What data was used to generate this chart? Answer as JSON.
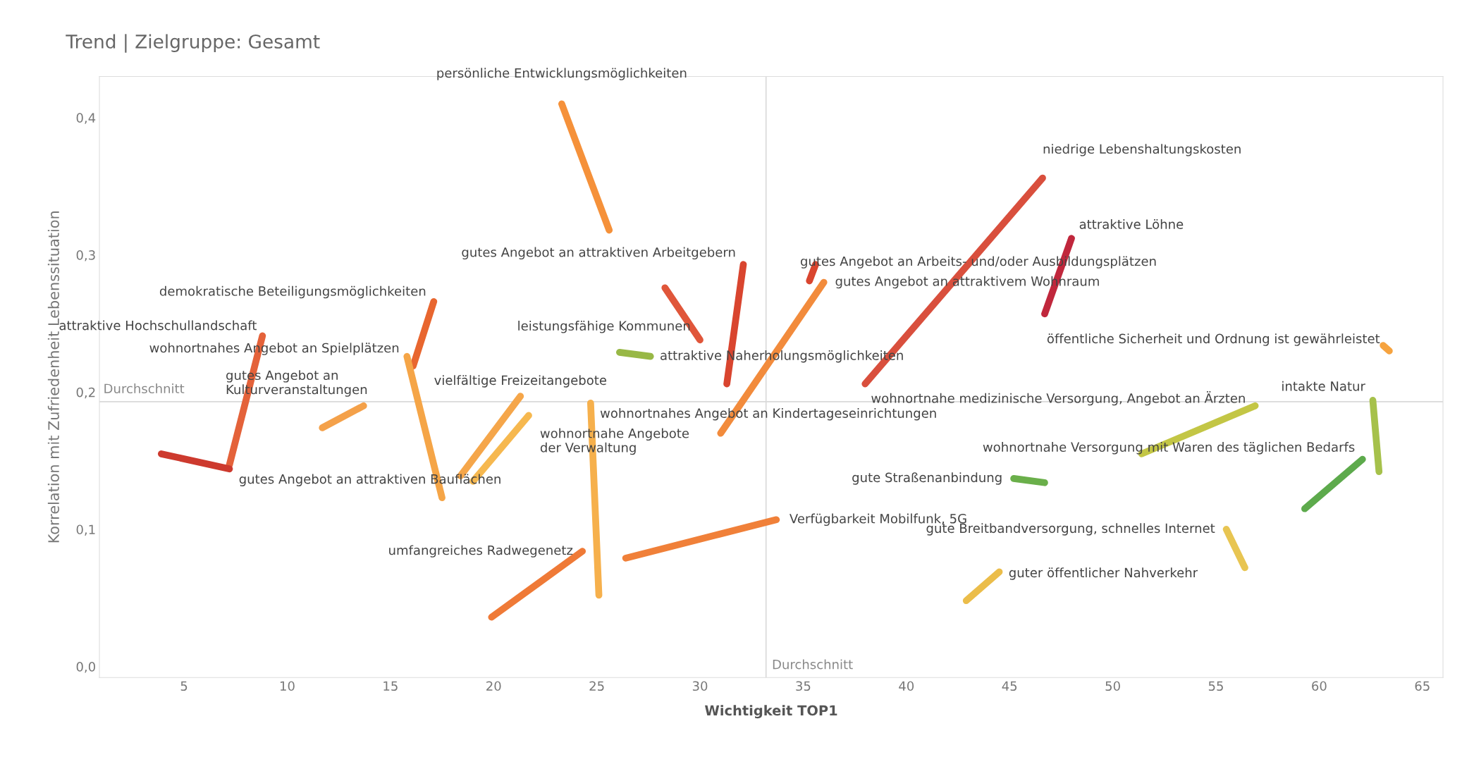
{
  "chart_data": {
    "type": "line",
    "title": "Trend | Zielgruppe: Gesamt",
    "xlabel": "Wichtigkeit TOP1",
    "ylabel": "Korrelation mit Zufriedenheit Lebenssituation",
    "xlim": [
      0.9,
      66
    ],
    "ylim": [
      -0.008,
      0.43
    ],
    "xticks": [
      5,
      10,
      15,
      20,
      25,
      30,
      35,
      40,
      45,
      50,
      55,
      60,
      65
    ],
    "yticks": [
      {
        "value": 0,
        "label": "0,0"
      },
      {
        "value": 0.1,
        "label": "0,1"
      },
      {
        "value": 0.2,
        "label": "0,2"
      },
      {
        "value": 0.3,
        "label": "0,3"
      },
      {
        "value": 0.4,
        "label": "0,4"
      }
    ],
    "grid": false,
    "marker": "none",
    "ref_lines": [
      {
        "axis": "y",
        "value": 0.193,
        "label": "Durchschnitt",
        "color": "#d9d9d9"
      },
      {
        "axis": "x",
        "value": 33.2,
        "label": "Durchschnitt",
        "color": "#d9d9d9"
      }
    ],
    "series": [
      {
        "name": "persönliche Entwicklungsmöglichkeiten",
        "color": "#f5913a",
        "x": [
          25.6,
          23.3
        ],
        "values": [
          0.318,
          0.41
        ]
      },
      {
        "name": "niedrige Lebenshaltungskosten",
        "color": "#d94f3d",
        "x": [
          38.0,
          46.6
        ],
        "values": [
          0.206,
          0.356
        ]
      },
      {
        "name": "attraktive Löhne",
        "color": "#c0273c",
        "x": [
          46.7,
          48.0
        ],
        "values": [
          0.257,
          0.312
        ]
      },
      {
        "name": "gutes Angebot an attraktiven Arbeitgebern",
        "color": "#d9452f",
        "x": [
          31.3,
          32.1
        ],
        "values": [
          0.206,
          0.293
        ]
      },
      {
        "name": "gutes Angebot an Arbeits- und/oder Ausbildungsplätzen",
        "color": "#d9452f",
        "x": [
          35.6,
          35.3
        ],
        "values": [
          0.293,
          0.281
        ]
      },
      {
        "name": "gutes Angebot an attraktivem Wohnraum",
        "color": "#f28b3c",
        "x": [
          31.0,
          36.0
        ],
        "values": [
          0.17,
          0.28
        ]
      },
      {
        "name": "leistungsfähige Kommunen",
        "color": "#e0563a",
        "x": [
          28.3,
          30.0
        ],
        "values": [
          0.276,
          0.238
        ]
      },
      {
        "name": "attraktive Naherholungsmöglichkeiten",
        "color": "#98b846",
        "x": [
          26.1,
          27.6
        ],
        "values": [
          0.229,
          0.226
        ]
      },
      {
        "name": "demokratische Beteiligungsmöglichkeiten",
        "color": "#e8662f",
        "x": [
          16.1,
          17.1
        ],
        "values": [
          0.219,
          0.266
        ]
      },
      {
        "name": "attraktive Hochschullandschaft",
        "color": "#e4623a",
        "x": [
          7.2,
          8.8
        ],
        "values": [
          0.147,
          0.241
        ]
      },
      {
        "name": "wohnortnahes Angebot an Spielplätzen",
        "color": "#f5a547",
        "x": [
          17.5,
          15.8
        ],
        "values": [
          0.123,
          0.226
        ]
      },
      {
        "name": "gutes Angebot an\nKulturveranstaltungen",
        "color": "#f4a14a",
        "x": [
          11.7,
          13.7
        ],
        "values": [
          0.174,
          0.19
        ]
      },
      {
        "name": "gutes Angebot an attraktiven Bauflächen",
        "color": "#cd3a2e",
        "x": [
          3.9,
          7.2
        ],
        "values": [
          0.155,
          0.144
        ]
      },
      {
        "name": "vielfältige Freizeitangebote",
        "color": "#f5a64a",
        "x": [
          18.4,
          21.3
        ],
        "values": [
          0.139,
          0.197
        ]
      },
      {
        "name": "wohnortnahe Angebote\nder Verwaltung",
        "color": "#f6b84f",
        "x": [
          19.0,
          21.7
        ],
        "values": [
          0.135,
          0.183
        ]
      },
      {
        "name": "wohnortnahes Angebot an Kindertageseinrichtungen",
        "color": "#f6b04c",
        "x": [
          25.1,
          24.7
        ],
        "values": [
          0.052,
          0.192
        ]
      },
      {
        "name": "umfangreiches Radwegenetz",
        "color": "#ef7a37",
        "x": [
          19.9,
          24.3
        ],
        "values": [
          0.036,
          0.084
        ]
      },
      {
        "name": "Verfügbarkeit Mobilfunk, 5G",
        "color": "#f08039",
        "x": [
          26.4,
          33.7
        ],
        "values": [
          0.079,
          0.107
        ]
      },
      {
        "name": "gute Breitbandversorgung, schnelles Internet",
        "color": "#e8c552",
        "x": [
          56.4,
          55.5
        ],
        "values": [
          0.072,
          0.1
        ]
      },
      {
        "name": "guter öffentlicher Nahverkehr",
        "color": "#ebbd4a",
        "x": [
          42.9,
          44.5
        ],
        "values": [
          0.048,
          0.069
        ]
      },
      {
        "name": "gute Straßenanbindung",
        "color": "#6aaf4a",
        "x": [
          46.7,
          45.2
        ],
        "values": [
          0.134,
          0.137
        ]
      },
      {
        "name": "wohnortnahe medizinische Versorgung, Angebot an Ärzten",
        "color": "#c3c645",
        "x": [
          51.4,
          56.9
        ],
        "values": [
          0.155,
          0.19
        ]
      },
      {
        "name": "wohnortnahe Versorgung mit Waren des täglichen Bedarfs",
        "color": "#5daa4c",
        "x": [
          59.3,
          62.1
        ],
        "values": [
          0.115,
          0.151
        ]
      },
      {
        "name": "intakte Natur",
        "color": "#a6c14b",
        "x": [
          62.9,
          62.6
        ],
        "values": [
          0.142,
          0.194
        ]
      },
      {
        "name": "öffentliche Sicherheit und Ordnung ist gewährleistet",
        "color": "#f6a33f",
        "x": [
          63.1,
          63.4
        ],
        "values": [
          0.234,
          0.23
        ]
      }
    ]
  }
}
